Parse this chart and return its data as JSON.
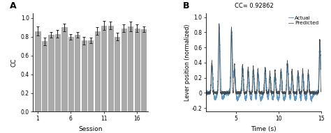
{
  "panel_A": {
    "title": "A",
    "bar_values": [
      0.86,
      0.75,
      0.82,
      0.83,
      0.9,
      0.8,
      0.82,
      0.76,
      0.76,
      0.86,
      0.92,
      0.92,
      0.8,
      0.89,
      0.91,
      0.89,
      0.88
    ],
    "bar_errors": [
      0.05,
      0.04,
      0.03,
      0.04,
      0.04,
      0.03,
      0.03,
      0.04,
      0.03,
      0.04,
      0.05,
      0.04,
      0.04,
      0.04,
      0.05,
      0.04,
      0.03
    ],
    "bar_color": "#aaaaaa",
    "edge_color": "#888888",
    "xlabel": "Session",
    "ylabel": "CC",
    "ylim": [
      0.0,
      1.05
    ],
    "yticks": [
      0.0,
      0.2,
      0.4,
      0.6,
      0.8,
      1.0
    ],
    "xtick_positions": [
      1,
      6,
      11,
      16
    ],
    "xtick_labels": [
      "1",
      "6",
      "11",
      "16"
    ],
    "n_bars": 17
  },
  "panel_B": {
    "title": "B",
    "cc_text": "CC= 0.92862",
    "xlabel": "Time (s)",
    "ylabel": "Lever position (normalized)",
    "xlim": [
      1.5,
      15.0
    ],
    "ylim": [
      -0.25,
      1.05
    ],
    "yticks": [
      -0.2,
      0.0,
      0.2,
      0.4,
      0.6,
      0.8,
      1.0
    ],
    "xticks": [
      5,
      10,
      15
    ],
    "predicted_color": "#444444",
    "actual_color": "#4a8ec2",
    "legend_predicted": "Predicted",
    "legend_actual": "Actual",
    "spike_times": [
      2.2,
      3.05,
      4.5,
      4.85,
      5.8,
      6.45,
      7.05,
      7.6,
      8.45,
      9.0,
      9.6,
      10.3,
      11.05,
      11.6,
      12.3,
      12.85,
      13.5,
      14.85
    ],
    "spike_heights": [
      0.4,
      0.9,
      0.86,
      0.38,
      0.36,
      0.33,
      0.35,
      0.32,
      0.33,
      0.28,
      0.3,
      0.31,
      0.42,
      0.3,
      0.29,
      0.31,
      0.29,
      0.7
    ]
  }
}
